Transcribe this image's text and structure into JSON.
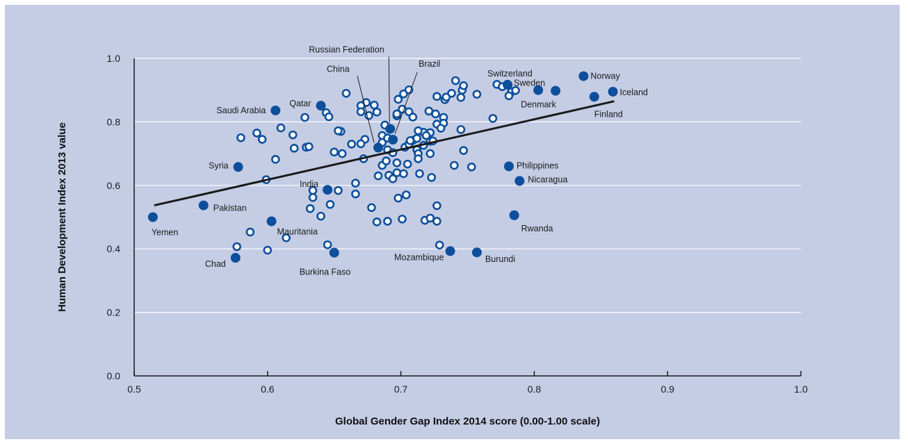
{
  "chart_data": {
    "type": "scatter",
    "title": "",
    "xlabel": "Global Gender Gap Index 2014 score (0.00-1.00 scale)",
    "ylabel": "Human Development Index 2013 value",
    "xlim": [
      0.5,
      1.0
    ],
    "ylim": [
      0.0,
      1.0
    ],
    "x_ticks": [
      "0.5",
      "0.6",
      "0.7",
      "0.8",
      "0.9",
      "1.0"
    ],
    "y_ticks": [
      "0.0",
      "0.2",
      "0.4",
      "0.6",
      "0.8",
      "1.0"
    ],
    "grid": "horizontal",
    "colors": {
      "background": "#c5cde5",
      "highlight_fill": "#0d4f9b",
      "other_stroke": "#0d4f9b",
      "other_fill": "#ffffff",
      "trend_line": "#1a1a1a"
    },
    "trend_line": {
      "x": [
        0.515,
        0.86
      ],
      "y": [
        0.537,
        0.865
      ]
    },
    "highlighted": [
      {
        "name": "Yemen",
        "x": 0.514,
        "y": 0.5
      },
      {
        "name": "Pakistan",
        "x": 0.552,
        "y": 0.537
      },
      {
        "name": "Chad",
        "x": 0.576,
        "y": 0.372
      },
      {
        "name": "Syria",
        "x": 0.578,
        "y": 0.658
      },
      {
        "name": "Mauritania",
        "x": 0.603,
        "y": 0.487
      },
      {
        "name": "Saudi Arabia",
        "x": 0.606,
        "y": 0.836
      },
      {
        "name": "Qatar",
        "x": 0.64,
        "y": 0.851
      },
      {
        "name": "India",
        "x": 0.645,
        "y": 0.586
      },
      {
        "name": "Burkina Faso",
        "x": 0.65,
        "y": 0.388
      },
      {
        "name": "China",
        "x": 0.683,
        "y": 0.719
      },
      {
        "name": "Russian Federation",
        "x": 0.692,
        "y": 0.778
      },
      {
        "name": "Brazil",
        "x": 0.694,
        "y": 0.744
      },
      {
        "name": "Mozambique",
        "x": 0.737,
        "y": 0.393
      },
      {
        "name": "Burundi",
        "x": 0.757,
        "y": 0.389
      },
      {
        "name": "Switzerland",
        "x": 0.78,
        "y": 0.917
      },
      {
        "name": "Philippines",
        "x": 0.781,
        "y": 0.66
      },
      {
        "name": "Rwanda",
        "x": 0.785,
        "y": 0.506
      },
      {
        "name": "Nicaragua",
        "x": 0.789,
        "y": 0.614
      },
      {
        "name": "Denmark",
        "x": 0.803,
        "y": 0.9
      },
      {
        "name": "Sweden",
        "x": 0.816,
        "y": 0.898
      },
      {
        "name": "Norway",
        "x": 0.837,
        "y": 0.944
      },
      {
        "name": "Finland",
        "x": 0.845,
        "y": 0.879
      },
      {
        "name": "Iceland",
        "x": 0.859,
        "y": 0.895
      }
    ],
    "others": [
      [
        0.659,
        0.89
      ],
      [
        0.674,
        0.861
      ],
      [
        0.68,
        0.853
      ],
      [
        0.67,
        0.851
      ],
      [
        0.67,
        0.832
      ],
      [
        0.676,
        0.82
      ],
      [
        0.682,
        0.831
      ],
      [
        0.644,
        0.829
      ],
      [
        0.646,
        0.816
      ],
      [
        0.628,
        0.814
      ],
      [
        0.61,
        0.781
      ],
      [
        0.592,
        0.765
      ],
      [
        0.58,
        0.75
      ],
      [
        0.596,
        0.745
      ],
      [
        0.619,
        0.759
      ],
      [
        0.62,
        0.717
      ],
      [
        0.629,
        0.72
      ],
      [
        0.631,
        0.722
      ],
      [
        0.606,
        0.682
      ],
      [
        0.599,
        0.618
      ],
      [
        0.655,
        0.77
      ],
      [
        0.653,
        0.772
      ],
      [
        0.663,
        0.73
      ],
      [
        0.673,
        0.745
      ],
      [
        0.672,
        0.684
      ],
      [
        0.67,
        0.731
      ],
      [
        0.65,
        0.705
      ],
      [
        0.656,
        0.7
      ],
      [
        0.686,
        0.757
      ],
      [
        0.688,
        0.79
      ],
      [
        0.686,
        0.735
      ],
      [
        0.69,
        0.749
      ],
      [
        0.697,
        0.819
      ],
      [
        0.698,
        0.871
      ],
      [
        0.702,
        0.888
      ],
      [
        0.706,
        0.901
      ],
      [
        0.701,
        0.84
      ],
      [
        0.706,
        0.832
      ],
      [
        0.709,
        0.815
      ],
      [
        0.697,
        0.825
      ],
      [
        0.703,
        0.72
      ],
      [
        0.709,
        0.742
      ],
      [
        0.706,
        0.73
      ],
      [
        0.712,
        0.712
      ],
      [
        0.713,
        0.7
      ],
      [
        0.717,
        0.767
      ],
      [
        0.722,
        0.766
      ],
      [
        0.721,
        0.834
      ],
      [
        0.726,
        0.825
      ],
      [
        0.727,
        0.88
      ],
      [
        0.733,
        0.87
      ],
      [
        0.734,
        0.878
      ],
      [
        0.738,
        0.89
      ],
      [
        0.741,
        0.93
      ],
      [
        0.746,
        0.9
      ],
      [
        0.747,
        0.914
      ],
      [
        0.745,
        0.877
      ],
      [
        0.757,
        0.887
      ],
      [
        0.772,
        0.918
      ],
      [
        0.776,
        0.911
      ],
      [
        0.783,
        0.895
      ],
      [
        0.781,
        0.882
      ],
      [
        0.786,
        0.899
      ],
      [
        0.769,
        0.811
      ],
      [
        0.732,
        0.814
      ],
      [
        0.727,
        0.793
      ],
      [
        0.732,
        0.796
      ],
      [
        0.745,
        0.776
      ],
      [
        0.73,
        0.78
      ],
      [
        0.713,
        0.772
      ],
      [
        0.712,
        0.748
      ],
      [
        0.722,
        0.739
      ],
      [
        0.717,
        0.726
      ],
      [
        0.719,
        0.757
      ],
      [
        0.724,
        0.74
      ],
      [
        0.707,
        0.741
      ],
      [
        0.69,
        0.712
      ],
      [
        0.694,
        0.703
      ],
      [
        0.686,
        0.663
      ],
      [
        0.689,
        0.677
      ],
      [
        0.697,
        0.671
      ],
      [
        0.705,
        0.667
      ],
      [
        0.713,
        0.684
      ],
      [
        0.722,
        0.7
      ],
      [
        0.74,
        0.663
      ],
      [
        0.753,
        0.658
      ],
      [
        0.747,
        0.71
      ],
      [
        0.683,
        0.63
      ],
      [
        0.691,
        0.632
      ],
      [
        0.694,
        0.621
      ],
      [
        0.697,
        0.64
      ],
      [
        0.702,
        0.637
      ],
      [
        0.714,
        0.637
      ],
      [
        0.723,
        0.625
      ],
      [
        0.666,
        0.607
      ],
      [
        0.666,
        0.573
      ],
      [
        0.653,
        0.584
      ],
      [
        0.634,
        0.584
      ],
      [
        0.634,
        0.562
      ],
      [
        0.647,
        0.54
      ],
      [
        0.632,
        0.527
      ],
      [
        0.64,
        0.503
      ],
      [
        0.678,
        0.53
      ],
      [
        0.682,
        0.485
      ],
      [
        0.69,
        0.487
      ],
      [
        0.698,
        0.56
      ],
      [
        0.704,
        0.57
      ],
      [
        0.701,
        0.494
      ],
      [
        0.718,
        0.49
      ],
      [
        0.722,
        0.497
      ],
      [
        0.727,
        0.487
      ],
      [
        0.727,
        0.536
      ],
      [
        0.729,
        0.412
      ],
      [
        0.645,
        0.413
      ],
      [
        0.614,
        0.435
      ],
      [
        0.587,
        0.453
      ],
      [
        0.577,
        0.407
      ],
      [
        0.6,
        0.396
      ]
    ]
  }
}
